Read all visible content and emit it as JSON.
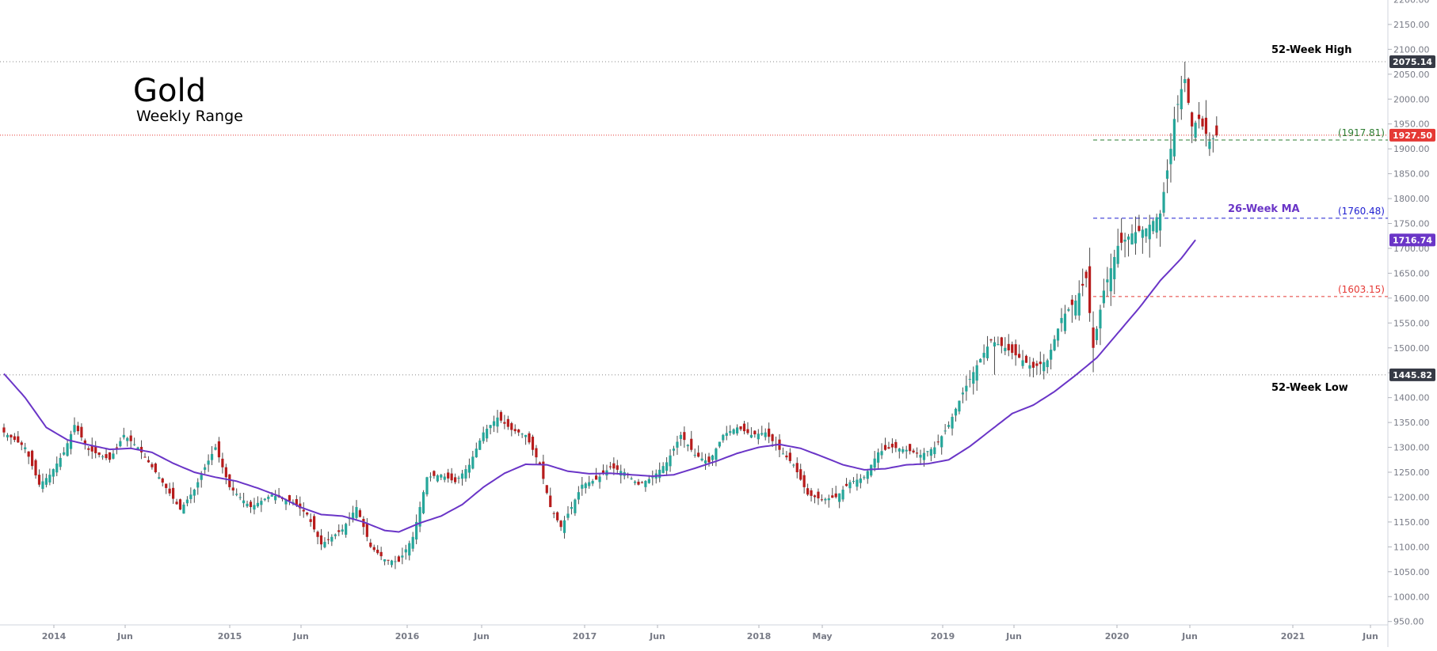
{
  "header": {
    "title": "Gold",
    "subtitle": "Weekly Range"
  },
  "colors": {
    "up": "#26a69a",
    "down": "#b71c1c",
    "wick": "#4a4a4a",
    "ma": "#6a35c7",
    "high_low_line": "#888888",
    "last_price": "#e53935",
    "green_level": "#2e7d32",
    "blue_level": "#1f1fd1",
    "red_level": "#e53935",
    "axis_text": "#787b86"
  },
  "chart_data": {
    "type": "candlestick",
    "title": "Gold",
    "subtitle": "Weekly Range",
    "ylim": [
      950,
      2200
    ],
    "y_ticks": [
      "950.00",
      "1000.00",
      "1050.00",
      "1100.00",
      "1150.00",
      "1200.00",
      "1250.00",
      "1300.00",
      "1350.00",
      "1400.00",
      "1450.00",
      "1500.00",
      "1550.00",
      "1600.00",
      "1650.00",
      "1700.00",
      "1750.00",
      "1800.00",
      "1850.00",
      "1900.00",
      "1950.00",
      "2000.00",
      "2050.00",
      "2100.00",
      "2150.00",
      "2200.00"
    ],
    "x_ticks": [
      "2014",
      "Jun",
      "2015",
      "Jun",
      "2016",
      "Jun",
      "2017",
      "Jun",
      "2018",
      "May",
      "2019",
      "Jun",
      "2020",
      "Jun",
      "2021",
      "Jun"
    ],
    "series_anchors": {
      "price_close": [
        [
          0,
          1330
        ],
        [
          6,
          1300
        ],
        [
          10,
          1225
        ],
        [
          13,
          1245
        ],
        [
          17,
          1290
        ],
        [
          20,
          1345
        ],
        [
          24,
          1295
        ],
        [
          30,
          1275
        ],
        [
          34,
          1325
        ],
        [
          38,
          1300
        ],
        [
          44,
          1240
        ],
        [
          50,
          1175
        ],
        [
          54,
          1215
        ],
        [
          57,
          1260
        ],
        [
          60,
          1300
        ],
        [
          64,
          1220
        ],
        [
          70,
          1180
        ],
        [
          76,
          1205
        ],
        [
          82,
          1190
        ],
        [
          86,
          1165
        ],
        [
          90,
          1105
        ],
        [
          96,
          1135
        ],
        [
          100,
          1180
        ],
        [
          104,
          1100
        ],
        [
          108,
          1075
        ],
        [
          112,
          1070
        ],
        [
          116,
          1120
        ],
        [
          120,
          1240
        ],
        [
          124,
          1245
        ],
        [
          128,
          1230
        ],
        [
          132,
          1265
        ],
        [
          136,
          1330
        ],
        [
          140,
          1360
        ],
        [
          144,
          1335
        ],
        [
          148,
          1325
        ],
        [
          152,
          1265
        ],
        [
          155,
          1180
        ],
        [
          158,
          1140
        ],
        [
          161,
          1180
        ],
        [
          164,
          1225
        ],
        [
          168,
          1235
        ],
        [
          172,
          1260
        ],
        [
          176,
          1250
        ],
        [
          180,
          1225
        ],
        [
          184,
          1240
        ],
        [
          188,
          1270
        ],
        [
          192,
          1325
        ],
        [
          196,
          1285
        ],
        [
          200,
          1270
        ],
        [
          204,
          1325
        ],
        [
          208,
          1340
        ],
        [
          212,
          1325
        ],
        [
          216,
          1330
        ],
        [
          220,
          1295
        ],
        [
          224,
          1265
        ],
        [
          228,
          1205
        ],
        [
          232,
          1195
        ],
        [
          236,
          1200
        ],
        [
          240,
          1230
        ],
        [
          244,
          1240
        ],
        [
          248,
          1290
        ],
        [
          252,
          1300
        ],
        [
          256,
          1295
        ],
        [
          260,
          1285
        ],
        [
          264,
          1300
        ],
        [
          268,
          1345
        ],
        [
          272,
          1410
        ],
        [
          276,
          1465
        ],
        [
          280,
          1515
        ],
        [
          284,
          1500
        ],
        [
          288,
          1480
        ],
        [
          292,
          1460
        ],
        [
          296,
          1475
        ],
        [
          300,
          1560
        ],
        [
          304,
          1595
        ],
        [
          307,
          1640
        ],
        [
          309,
          1500
        ],
        [
          312,
          1615
        ],
        [
          316,
          1705
        ],
        [
          320,
          1730
        ],
        [
          324,
          1740
        ],
        [
          328,
          1770
        ],
        [
          331,
          1900
        ],
        [
          332,
          1960
        ],
        [
          334,
          2020
        ],
        [
          335,
          2040
        ],
        [
          337,
          1945
        ],
        [
          339,
          1960
        ],
        [
          342,
          1915
        ],
        [
          344,
          1927
        ]
      ],
      "ma_26_week": [
        [
          0,
          1448
        ],
        [
          6,
          1400
        ],
        [
          12,
          1340
        ],
        [
          18,
          1315
        ],
        [
          24,
          1305
        ],
        [
          30,
          1296
        ],
        [
          36,
          1298
        ],
        [
          42,
          1290
        ],
        [
          48,
          1268
        ],
        [
          54,
          1250
        ],
        [
          60,
          1240
        ],
        [
          66,
          1232
        ],
        [
          72,
          1218
        ],
        [
          78,
          1202
        ],
        [
          84,
          1180
        ],
        [
          90,
          1165
        ],
        [
          96,
          1162
        ],
        [
          102,
          1150
        ],
        [
          108,
          1133
        ],
        [
          112,
          1130
        ],
        [
          118,
          1148
        ],
        [
          124,
          1162
        ],
        [
          130,
          1185
        ],
        [
          136,
          1220
        ],
        [
          142,
          1248
        ],
        [
          148,
          1266
        ],
        [
          154,
          1265
        ],
        [
          160,
          1252
        ],
        [
          166,
          1247
        ],
        [
          172,
          1248
        ],
        [
          178,
          1245
        ],
        [
          184,
          1242
        ],
        [
          190,
          1245
        ],
        [
          196,
          1258
        ],
        [
          202,
          1272
        ],
        [
          208,
          1288
        ],
        [
          214,
          1300
        ],
        [
          220,
          1306
        ],
        [
          226,
          1298
        ],
        [
          232,
          1282
        ],
        [
          238,
          1265
        ],
        [
          244,
          1255
        ],
        [
          250,
          1257
        ],
        [
          256,
          1265
        ],
        [
          262,
          1267
        ],
        [
          268,
          1275
        ],
        [
          274,
          1302
        ],
        [
          280,
          1335
        ],
        [
          286,
          1368
        ],
        [
          292,
          1385
        ],
        [
          298,
          1412
        ],
        [
          304,
          1445
        ],
        [
          310,
          1480
        ],
        [
          316,
          1530
        ],
        [
          322,
          1580
        ],
        [
          328,
          1635
        ],
        [
          334,
          1680
        ],
        [
          338,
          1717
        ]
      ]
    },
    "annotations": {
      "high_52w": {
        "label": "52-Week High",
        "value": 2075.14,
        "value_label": "2075.14"
      },
      "low_52w": {
        "label": "52-Week Low",
        "value": 1445.82,
        "value_label": "1445.82"
      },
      "last_price": {
        "value": 1927.5,
        "value_label": "1927.50"
      },
      "ma_value": {
        "label": "26-Week MA",
        "value": 1716.74,
        "value_label": "1716.74"
      },
      "level_green": {
        "value": 1917.81,
        "label": "(1917.81)"
      },
      "level_blue": {
        "value": 1760.48,
        "label": "(1760.48)"
      },
      "level_red": {
        "value": 1603.15,
        "label": "(1603.15)"
      }
    }
  }
}
